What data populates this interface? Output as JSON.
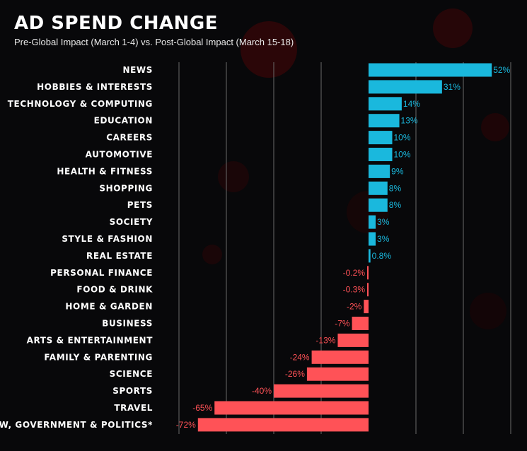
{
  "chart_data": {
    "type": "bar",
    "orientation": "horizontal",
    "title": "AD SPEND CHANGE",
    "subtitle": "Pre-Global Impact (March 1-4) vs. Post-Global Impact (March 15-18)",
    "categories": [
      "NEWS",
      "HOBBIES & INTERESTS",
      "TECHNOLOGY & COMPUTING",
      "EDUCATION",
      "CAREERS",
      "AUTOMOTIVE",
      "HEALTH & FITNESS",
      "SHOPPING",
      "PETS",
      "SOCIETY",
      "STYLE & FASHION",
      "REAL ESTATE",
      "PERSONAL FINANCE",
      "FOOD & DRINK",
      "HOME & GARDEN",
      "BUSINESS",
      "ARTS & ENTERTAINMENT",
      "FAMILY & PARENTING",
      "SCIENCE",
      "SPORTS",
      "TRAVEL",
      "LAW, GOVERNMENT & POLITICS*"
    ],
    "values": [
      52,
      31,
      14,
      13,
      10,
      10,
      9,
      8,
      8,
      3,
      3,
      0.8,
      -0.2,
      -0.3,
      -2,
      -7,
      -13,
      -24,
      -26,
      -40,
      -65,
      -72
    ],
    "value_labels": [
      "52%",
      "31%",
      "14%",
      "13%",
      "10%",
      "10%",
      "9%",
      "8%",
      "8%",
      "3%",
      "3%",
      "0.8%",
      "-0.2%",
      "-0.3%",
      "-2%",
      "-7%",
      "-13%",
      "-24%",
      "-26%",
      "-40%",
      "-65%",
      "-72%"
    ],
    "xlim": [
      -80,
      60
    ],
    "grid": true,
    "colors": {
      "positive": "#1ab8dd",
      "negative": "#ff5257",
      "background": "#08080a",
      "grid": "#6a6a6a"
    }
  }
}
